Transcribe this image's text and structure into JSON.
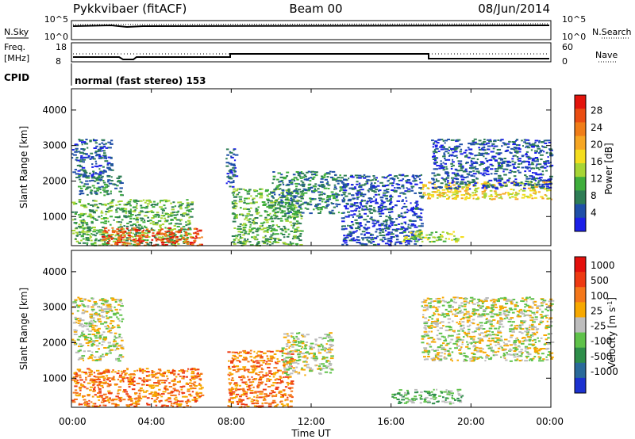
{
  "header": {
    "radar": "Pykkvibaer (fitACF)",
    "beam": "Beam 00",
    "date": "08/Jun/2014"
  },
  "strips": {
    "nsky_label": "N.Sky",
    "nsky_ticks": [
      "10^5",
      "10^0"
    ],
    "nsearch_label": "N.Search",
    "nsearch_ticks": [
      "10^5",
      "10^0"
    ],
    "freq_label_1": "Freq.",
    "freq_label_2": "[MHz]",
    "freq_ticks": [
      "18",
      "8"
    ],
    "nave_label": "Nave",
    "nave_ticks": [
      "60",
      "0"
    ],
    "cpid_label": "CPID",
    "cpid_text": "normal (fast stereo) 153"
  },
  "x_axis": {
    "title": "Time UT",
    "ticks": [
      "00:00",
      "04:00",
      "08:00",
      "12:00",
      "16:00",
      "20:00",
      "00:00"
    ]
  },
  "chart_data": [
    {
      "type": "heatmap",
      "name": "power",
      "xlabel": "Time UT",
      "ylabel": "Slant Range [km]",
      "xlim": [
        0,
        24
      ],
      "ylim": [
        180,
        4600
      ],
      "yticks": [
        "1000",
        "2000",
        "3000",
        "4000"
      ],
      "colorbar": {
        "label": "Power [dB]",
        "ticks": [
          "4",
          "8",
          "12",
          "16",
          "20",
          "24",
          "28"
        ],
        "colors": [
          "#1c20e8",
          "#1f4fa8",
          "#2e7d55",
          "#3fae3c",
          "#a7d535",
          "#f4dd1e",
          "#f6a623",
          "#f07d18",
          "#ea4d12",
          "#e3140c"
        ]
      },
      "regions": [
        {
          "t": [
            0,
            2.0
          ],
          "r": [
            2100,
            3200
          ],
          "level": 1
        },
        {
          "t": [
            0.3,
            2.5
          ],
          "r": [
            1600,
            2200
          ],
          "level": 2
        },
        {
          "t": [
            0,
            6.0
          ],
          "r": [
            200,
            1500
          ],
          "level": 3
        },
        {
          "t": [
            1.5,
            6.5
          ],
          "r": [
            200,
            700
          ],
          "level": 8
        },
        {
          "t": [
            7.7,
            8.2
          ],
          "r": [
            1800,
            3000
          ],
          "level": 1
        },
        {
          "t": [
            8.0,
            11.5
          ],
          "r": [
            200,
            1800
          ],
          "level": 3
        },
        {
          "t": [
            10.0,
            13.5
          ],
          "r": [
            1100,
            2300
          ],
          "level": 2
        },
        {
          "t": [
            13.5,
            17.5
          ],
          "r": [
            200,
            2200
          ],
          "level": 1
        },
        {
          "t": [
            16.5,
            19.5
          ],
          "r": [
            300,
            600
          ],
          "level": 4
        },
        {
          "t": [
            17.5,
            24.0
          ],
          "r": [
            1500,
            2000
          ],
          "level": 5
        },
        {
          "t": [
            18.0,
            24.0
          ],
          "r": [
            1800,
            3200
          ],
          "level": 1
        }
      ]
    },
    {
      "type": "heatmap",
      "name": "velocity",
      "xlabel": "Time UT",
      "ylabel": "Slant Range [km]",
      "xlim": [
        0,
        24
      ],
      "ylim": [
        180,
        4600
      ],
      "yticks": [
        "1000",
        "2000",
        "3000",
        "4000"
      ],
      "colorbar": {
        "label": "Velocity [m s^-1]",
        "ticks": [
          "1000",
          "500",
          "100",
          "25",
          "-25",
          "-100",
          "-500",
          "-1000"
        ],
        "colors": [
          "#1c32d0",
          "#2a6a9a",
          "#2e8e4a",
          "#5fc24a",
          "#bdbdbd",
          "#f7a800",
          "#f4771a",
          "#ee3a12",
          "#e4100c"
        ]
      },
      "regions": [
        {
          "t": [
            0,
            2.5
          ],
          "r": [
            1500,
            3300
          ],
          "level": 4
        },
        {
          "t": [
            0,
            6.5
          ],
          "r": [
            200,
            1300
          ],
          "level": 6
        },
        {
          "t": [
            7.8,
            11.0
          ],
          "r": [
            200,
            1800
          ],
          "level": 6
        },
        {
          "t": [
            10.5,
            13.0
          ],
          "r": [
            1100,
            2300
          ],
          "level": 4
        },
        {
          "t": [
            16.0,
            19.5
          ],
          "r": [
            300,
            700
          ],
          "level": 3
        },
        {
          "t": [
            17.5,
            24.0
          ],
          "r": [
            1500,
            3300
          ],
          "level": 4
        }
      ]
    }
  ]
}
